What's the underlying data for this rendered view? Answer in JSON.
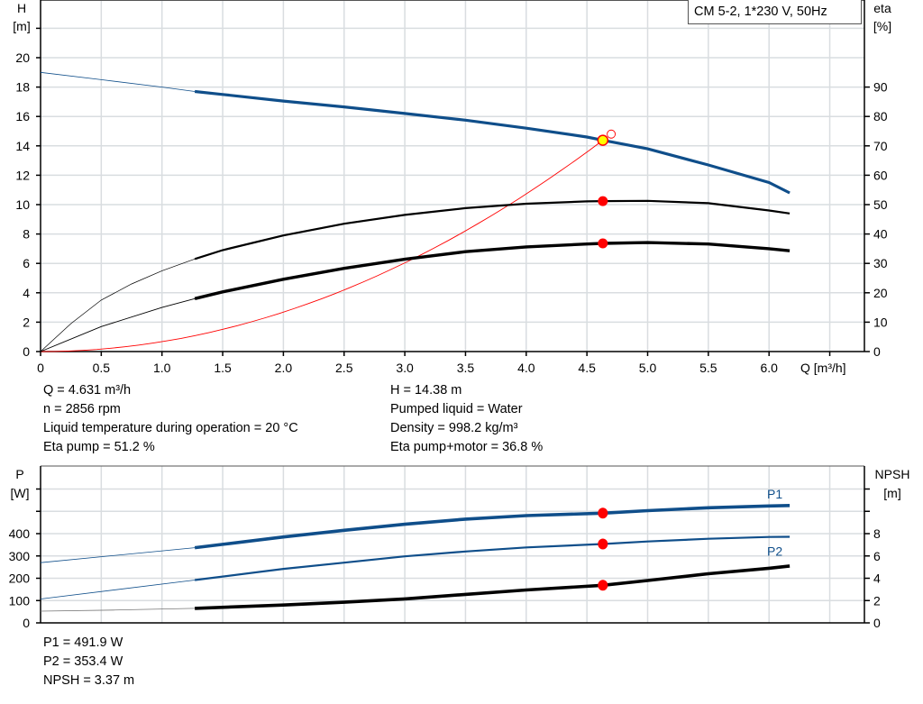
{
  "chart_data": [
    {
      "type": "line",
      "title": "CM 5-2, 1*230 V, 50Hz",
      "xlabel": "Q [m³/h]",
      "ylabel": "H\n[m]",
      "ylabel_left_lines": [
        "H",
        "[m]"
      ],
      "ylabel_right_lines": [
        "eta",
        "[%]"
      ],
      "xlim": [
        0,
        6.79
      ],
      "ylim": [
        0,
        23.9
      ],
      "ylim_right": [
        0,
        119.5
      ],
      "x_ticks": [
        "0",
        "0.5",
        "1.0",
        "1.5",
        "2.0",
        "2.5",
        "3.0",
        "3.5",
        "4.0",
        "4.5",
        "5.0",
        "5.5",
        "6.0"
      ],
      "y_ticks": [
        "0",
        "2",
        "4",
        "6",
        "8",
        "10",
        "12",
        "14",
        "16",
        "18",
        "20"
      ],
      "y_ticks_right": [
        "0",
        "10",
        "20",
        "30",
        "40",
        "50",
        "60",
        "70",
        "80",
        "90"
      ],
      "grid": true,
      "series": [
        {
          "key": "head",
          "axis": "left",
          "color": "#0f4e8a",
          "thin": [
            [
              0,
              19.0
            ],
            [
              0.5,
              18.5
            ],
            [
              1.0,
              18.0
            ],
            [
              1.27,
              17.7
            ]
          ],
          "thick": [
            [
              1.27,
              17.7
            ],
            [
              1.5,
              17.5
            ],
            [
              2.0,
              17.05
            ],
            [
              2.5,
              16.65
            ],
            [
              3.0,
              16.2
            ],
            [
              3.5,
              15.75
            ],
            [
              4.0,
              15.2
            ],
            [
              4.5,
              14.6
            ],
            [
              4.631,
              14.38
            ],
            [
              5.0,
              13.8
            ],
            [
              5.5,
              12.7
            ],
            [
              6.0,
              11.5
            ],
            [
              6.17,
              10.8
            ]
          ]
        },
        {
          "key": "eta-pump",
          "axis": "right",
          "color": "#000000",
          "thin": [
            [
              0,
              0
            ],
            [
              0.25,
              9.5
            ],
            [
              0.5,
              17.5
            ],
            [
              0.75,
              23
            ],
            [
              1.0,
              27.5
            ],
            [
              1.27,
              31.5
            ]
          ],
          "thick": [
            [
              1.27,
              31.5
            ],
            [
              1.5,
              34.5
            ],
            [
              2.0,
              39.5
            ],
            [
              2.5,
              43.5
            ],
            [
              3.0,
              46.5
            ],
            [
              3.5,
              48.8
            ],
            [
              4.0,
              50.3
            ],
            [
              4.5,
              51.1
            ],
            [
              4.631,
              51.2
            ],
            [
              5.0,
              51.3
            ],
            [
              5.5,
              50.5
            ],
            [
              6.0,
              48.0
            ],
            [
              6.17,
              47.0
            ]
          ]
        },
        {
          "key": "eta-pump-motor",
          "axis": "right",
          "color": "#000000",
          "thin": [
            [
              0,
              0
            ],
            [
              0.5,
              8.5
            ],
            [
              1.0,
              15.0
            ],
            [
              1.27,
              18.0
            ]
          ],
          "thick": [
            [
              1.27,
              18.0
            ],
            [
              1.5,
              20.3
            ],
            [
              2.0,
              24.6
            ],
            [
              2.5,
              28.3
            ],
            [
              3.0,
              31.4
            ],
            [
              3.5,
              34.0
            ],
            [
              4.0,
              35.6
            ],
            [
              4.5,
              36.6
            ],
            [
              4.631,
              36.8
            ],
            [
              5.0,
              37.1
            ],
            [
              5.5,
              36.6
            ],
            [
              6.0,
              35.0
            ],
            [
              6.17,
              34.3
            ]
          ]
        }
      ],
      "system_curve": {
        "color": "#ff0000",
        "q_end": 4.631,
        "h_end": 14.38
      },
      "duty_point": {
        "q": 4.631,
        "h": 14.38,
        "eta_pump": 51.2,
        "eta_pump_motor": 36.8,
        "fill": "#ffff00"
      },
      "open_marker": {
        "q": 4.7,
        "h": 14.8
      }
    },
    {
      "type": "line",
      "ylabel_left_lines": [
        "P",
        "[W]"
      ],
      "ylabel_right_lines": [
        "NPSH",
        "[m]"
      ],
      "xlim": [
        0,
        6.79
      ],
      "ylim": [
        0,
        600
      ],
      "ylim_right": [
        0,
        12
      ],
      "y_ticks": [
        "0",
        "100",
        "200",
        "300",
        "400"
      ],
      "y_ticks_right": [
        "0",
        "2",
        "4",
        "6",
        "8"
      ],
      "grid": true,
      "series": [
        {
          "key": "P1",
          "name": "P1",
          "axis": "left",
          "color": "#0f4e8a",
          "width": "thick",
          "thin": [
            [
              0,
              270
            ],
            [
              1.27,
              337
            ]
          ],
          "thick": [
            [
              1.27,
              337
            ],
            [
              1.5,
              352
            ],
            [
              2.0,
              385
            ],
            [
              2.5,
              415
            ],
            [
              3.0,
              442
            ],
            [
              3.5,
              465
            ],
            [
              4.0,
              481
            ],
            [
              4.631,
              491.9
            ],
            [
              5.0,
              503
            ],
            [
              5.5,
              516
            ],
            [
              6.0,
              524
            ],
            [
              6.17,
              526
            ]
          ]
        },
        {
          "key": "P2",
          "name": "P2",
          "axis": "left",
          "color": "#0f4e8a",
          "width": "medium",
          "thin": [
            [
              0,
              107
            ],
            [
              1.27,
              192
            ]
          ],
          "thick": [
            [
              1.27,
              192
            ],
            [
              2.0,
              242
            ],
            [
              2.5,
              270
            ],
            [
              3.0,
              298
            ],
            [
              3.5,
              320
            ],
            [
              4.0,
              338
            ],
            [
              4.631,
              353.4
            ],
            [
              5.0,
              365
            ],
            [
              5.5,
              377
            ],
            [
              6.0,
              385
            ],
            [
              6.17,
              386
            ]
          ]
        },
        {
          "key": "NPSH",
          "axis": "right",
          "color": "#000000",
          "width": "thick",
          "thin": [
            [
              0,
              1.05
            ],
            [
              0.6,
              1.15
            ],
            [
              1.27,
              1.3
            ]
          ],
          "thick": [
            [
              1.27,
              1.3
            ],
            [
              2.0,
              1.6
            ],
            [
              2.5,
              1.85
            ],
            [
              3.0,
              2.15
            ],
            [
              3.5,
              2.55
            ],
            [
              4.0,
              2.95
            ],
            [
              4.631,
              3.37
            ],
            [
              5.0,
              3.8
            ],
            [
              5.5,
              4.4
            ],
            [
              6.0,
              4.9
            ],
            [
              6.17,
              5.1
            ]
          ]
        }
      ],
      "duty_point": {
        "q": 4.631,
        "P1": 491.9,
        "P2": 353.4,
        "NPSH": 3.37
      }
    }
  ],
  "info_top": {
    "left": [
      "Q = 4.631 m³/h",
      "n = 2856 rpm",
      "Liquid temperature during operation = 20 °C",
      "Eta pump = 51.2 %"
    ],
    "right": [
      "H = 14.38 m",
      "Pumped liquid = Water",
      "Density = 998.2 kg/m³",
      "Eta pump+motor = 36.8 %"
    ]
  },
  "info_bottom": [
    "P1 = 491.9 W",
    "P2 = 353.4 W",
    "NPSH = 3.37 m"
  ],
  "colors": {
    "grid": "#d9dde0",
    "blue": "#0f4e8a",
    "marker": "#ff0000"
  }
}
